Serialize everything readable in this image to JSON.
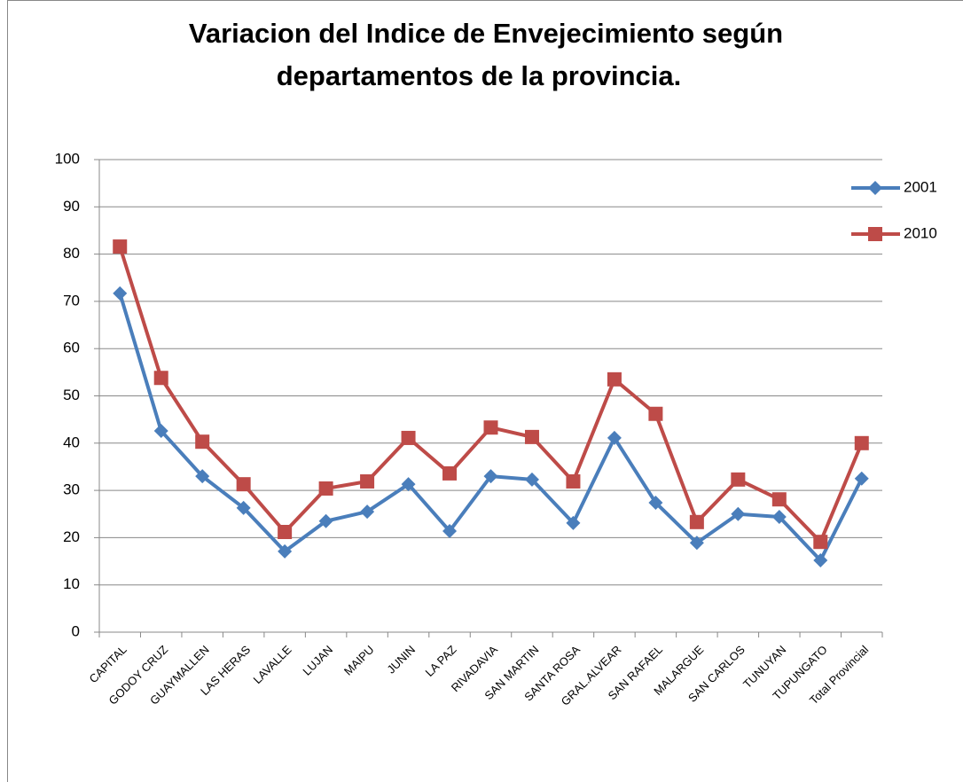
{
  "chart_data": {
    "type": "line",
    "title": [
      "Variacion del Indice de Envejecimiento según",
      "departamentos de la provincia."
    ],
    "categories": [
      "CAPITAL",
      "GODOY CRUZ",
      "GUAYMALLEN",
      "LAS HERAS",
      "LAVALLE",
      "LUJAN",
      "MAIPU",
      "JUNIN",
      "LA PAZ",
      "RIVADAVIA",
      "SAN MARTIN",
      "SANTA ROSA",
      "GRAL.ALVEAR",
      "SAN RAFAEL",
      "MALARGUE",
      "SAN CARLOS",
      "TUNUYAN",
      "TUPUNGATO",
      "Total Provincial"
    ],
    "series": [
      {
        "name": "2001",
        "color": "#4a7ebb",
        "marker": "diamond",
        "values": [
          71.7,
          42.6,
          33.0,
          26.3,
          17.1,
          23.5,
          25.5,
          31.3,
          21.4,
          33.0,
          32.3,
          23.1,
          41.1,
          27.4,
          18.9,
          25.0,
          24.4,
          15.2,
          32.5
        ]
      },
      {
        "name": "2010",
        "color": "#be4b48",
        "marker": "square",
        "values": [
          81.6,
          53.8,
          40.3,
          31.3,
          21.2,
          30.4,
          31.9,
          41.1,
          33.6,
          43.3,
          41.3,
          31.9,
          53.5,
          46.2,
          23.3,
          32.3,
          28.1,
          19.1,
          40.0
        ]
      }
    ],
    "ylim": [
      0,
      100
    ],
    "yticks": [
      0,
      10,
      20,
      30,
      40,
      50,
      60,
      70,
      80,
      90,
      100
    ],
    "grid": true,
    "legend": "right"
  }
}
